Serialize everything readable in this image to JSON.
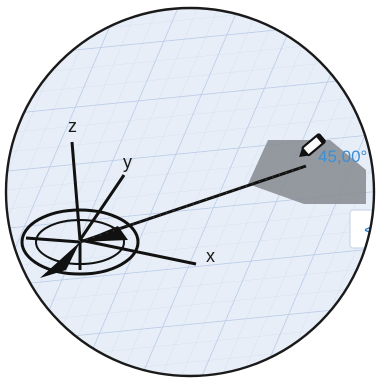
{
  "viewport": {
    "axes": {
      "x_label": "x",
      "y_label": "y",
      "z_label": "z"
    },
    "angle_readout": "45,00°",
    "input_box": {
      "chevron": "<"
    },
    "icons": {
      "pencil": "pencil-icon",
      "compass": "compass-icon"
    },
    "colors": {
      "grid_background": "#e8eef7",
      "grid_line": "#c4d4ec",
      "plane_fill": "#8b8f96",
      "readout_blue": "#3a8fd6",
      "lens_border": "#1a1a1a",
      "outside": "#ffffff"
    }
  }
}
